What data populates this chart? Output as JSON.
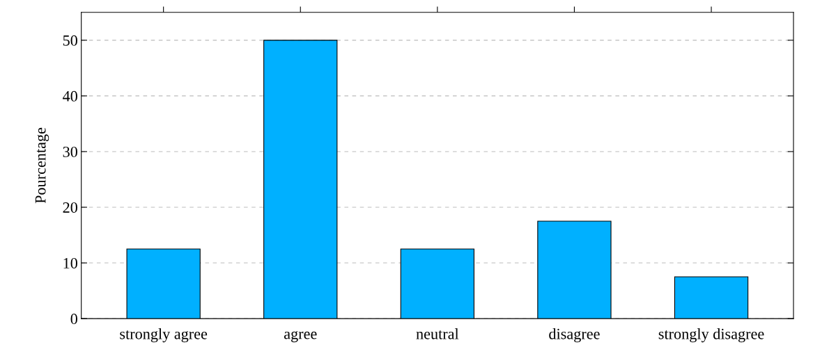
{
  "chart_data": {
    "type": "bar",
    "ylabel": "Pourcentage",
    "categories": [
      "strongly agree",
      "agree",
      "neutral",
      "disagree",
      "strongly disagree"
    ],
    "values": [
      12.5,
      50,
      12.5,
      17.5,
      7.5
    ],
    "color": "#00b0ff",
    "ylim": [
      0,
      55
    ],
    "yticks": [
      0,
      10,
      20,
      30,
      40,
      50
    ],
    "grid": "y",
    "line_style": "dashed"
  }
}
